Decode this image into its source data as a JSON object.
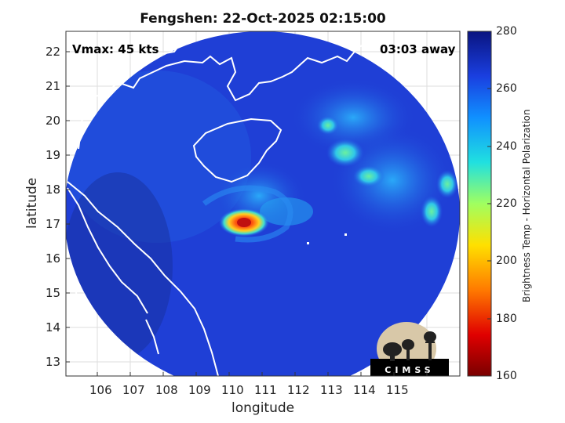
{
  "title": "Fengshen: 22-Oct-2025 02:15:00",
  "vmax_text": "Vmax: 45 kts",
  "away_text": "03:03 away",
  "xlabel": "longitude",
  "ylabel": "latitude",
  "x_ticks": [
    "106",
    "107",
    "108",
    "109",
    "110",
    "111",
    "112",
    "113",
    "114",
    "115"
  ],
  "y_ticks": [
    "22",
    "21",
    "20",
    "19",
    "18",
    "17",
    "16",
    "15",
    "14",
    "13"
  ],
  "colorbar": {
    "label": "Brightness Temp - Horizontal Polarization",
    "ticks": [
      "280",
      "260",
      "240",
      "220",
      "200",
      "180",
      "160"
    ],
    "min": 160,
    "max": 280
  },
  "logo_text": "CIMSS",
  "colors": {
    "background_scan": "#1f3fd6",
    "land_outline": "#ffffff",
    "storm_core": "#e8321a"
  },
  "icons": [
    "cimss-logo-icon"
  ]
}
